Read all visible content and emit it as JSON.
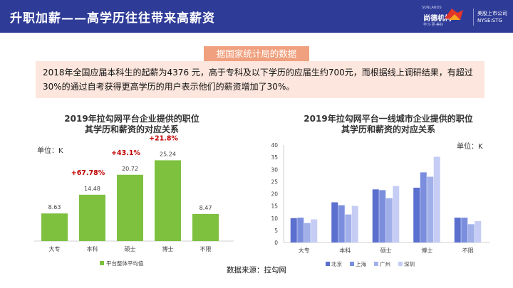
{
  "header": {
    "title": "升职加薪——高学历往往带来高薪资",
    "brand_tag": "SUNLANDS",
    "brand_name": "尚德机构",
    "brand_slogan": "学习·更·美好",
    "listing_line1": "美股上市公司",
    "listing_line2": "NYSE:STG"
  },
  "data_tag": "据国家统计局的数据",
  "info_text": "2018年全国应届本科生的起薪为4376 元，高于专科及以下学历的应届生约700元，而根据线上调研结果，有超过30%的通过自考获得更高学历的用户表示他们的薪资增加了30%。",
  "source": "数据来源：拉勾网",
  "colors": {
    "header_bg": "#2e3b97",
    "green": "#7dc13f",
    "tag": "#f0a07e",
    "info_bg": "#fde6dd",
    "increase_red": "#c00000",
    "beijing": "#5a6fce",
    "shanghai": "#7b8ede",
    "guangzhou": "#a2b0ea",
    "shenzhen": "#c5cdf5"
  },
  "chart_data": [
    {
      "type": "bar",
      "title_line1": "2019年拉勾网平台企业提供的职位",
      "title_line2": "其学历和薪资的对应关系",
      "unit": "单位：K",
      "categories": [
        "大专",
        "本科",
        "硕士",
        "博士",
        "不限"
      ],
      "series": [
        {
          "name": "平台整体平均值",
          "values": [
            8.63,
            14.48,
            20.72,
            25.24,
            8.47
          ]
        }
      ],
      "value_labels": [
        "8.63",
        "14.48",
        "20.72",
        "25.24",
        "8.47"
      ],
      "annotations": [
        "+67.78%",
        "+43.1%",
        "+21.8%"
      ],
      "ylim": [
        0,
        30
      ],
      "legend_position": "bottom-center"
    },
    {
      "type": "bar",
      "title_line1": "2019年拉勾网平台一线城市企业提供的职位",
      "title_line2": "其学历和薪资的对应关系",
      "unit": "单位：K",
      "categories": [
        "大专",
        "本科",
        "硕士",
        "博士",
        "不限"
      ],
      "series": [
        {
          "name": "北京",
          "values": [
            10,
            16.5,
            21.8,
            22.5,
            10.2
          ]
        },
        {
          "name": "上海",
          "values": [
            10.2,
            15.3,
            21.5,
            28.8,
            10.2
          ]
        },
        {
          "name": "广州",
          "values": [
            8,
            11.5,
            18.2,
            27,
            7.5
          ]
        },
        {
          "name": "深圳",
          "values": [
            9.5,
            15,
            23.2,
            35.2,
            8.8
          ]
        }
      ],
      "y_ticks": [
        "0",
        "5",
        "10",
        "15",
        "20",
        "25",
        "30",
        "35",
        "40"
      ],
      "ylim": [
        0,
        40
      ],
      "grid": false,
      "legend_position": "bottom-center"
    }
  ]
}
